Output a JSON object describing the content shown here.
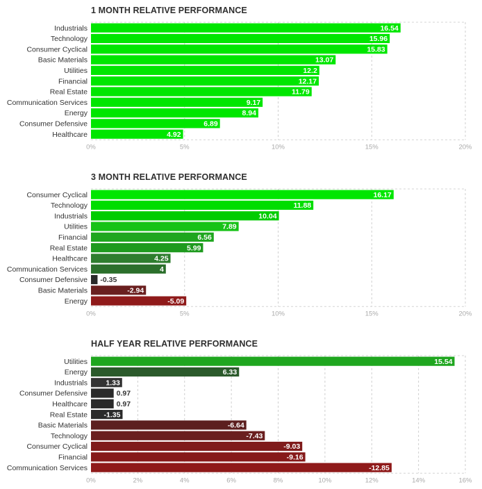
{
  "chart_data": [
    {
      "type": "bar",
      "orientation": "horizontal",
      "title": "1 MONTH RELATIVE PERFORMANCE",
      "categories": [
        "Industrials",
        "Technology",
        "Consumer Cyclical",
        "Basic Materials",
        "Utilities",
        "Financial",
        "Real Estate",
        "Communication Services",
        "Energy",
        "Consumer Defensive",
        "Healthcare"
      ],
      "values": [
        16.54,
        15.96,
        15.83,
        13.07,
        12.2,
        12.17,
        11.79,
        9.17,
        8.94,
        6.89,
        4.92
      ],
      "value_labels": [
        "16.54",
        "15.96",
        "15.83",
        "13.07",
        "12.2",
        "12.17",
        "11.79",
        "9.17",
        "8.94",
        "6.89",
        "4.92"
      ],
      "xlim": [
        0,
        20
      ],
      "ticks": [
        0,
        5,
        10,
        15,
        20
      ],
      "tick_labels": [
        "0%",
        "5%",
        "10%",
        "15%",
        "20%"
      ],
      "colors": [
        "#00e600",
        "#00e600",
        "#00e600",
        "#00e600",
        "#00e600",
        "#00e600",
        "#00e600",
        "#00e600",
        "#00e600",
        "#00e600",
        "#00e600"
      ]
    },
    {
      "type": "bar",
      "orientation": "horizontal",
      "title": "3 MONTH RELATIVE PERFORMANCE",
      "categories": [
        "Consumer Cyclical",
        "Technology",
        "Industrials",
        "Utilities",
        "Financial",
        "Real Estate",
        "Healthcare",
        "Communication Services",
        "Consumer Defensive",
        "Basic Materials",
        "Energy"
      ],
      "values": [
        16.17,
        11.88,
        10.04,
        7.89,
        6.56,
        5.99,
        4.25,
        4.0,
        -0.35,
        -2.94,
        -5.09
      ],
      "value_labels": [
        "16.17",
        "11.88",
        "10.04",
        "7.89",
        "6.56",
        "5.99",
        "4.25",
        "4",
        "-0.35",
        "-2.94",
        "-5.09"
      ],
      "xlim": [
        0,
        20
      ],
      "ticks": [
        0,
        5,
        10,
        15,
        20
      ],
      "tick_labels": [
        "0%",
        "5%",
        "10%",
        "15%",
        "20%"
      ],
      "colors": [
        "#00e600",
        "#00dd00",
        "#00cc00",
        "#17c217",
        "#1fa61f",
        "#1e9a1e",
        "#2e7d2e",
        "#2b6f2b",
        "#2a2a2a",
        "#6a1f1f",
        "#8f1a1a"
      ]
    },
    {
      "type": "bar",
      "orientation": "horizontal",
      "title": "HALF YEAR RELATIVE PERFORMANCE",
      "categories": [
        "Utilities",
        "Energy",
        "Industrials",
        "Consumer Defensive",
        "Healthcare",
        "Real Estate",
        "Basic Materials",
        "Technology",
        "Consumer Cyclical",
        "Financial",
        "Communication Services"
      ],
      "values": [
        15.54,
        6.33,
        1.33,
        0.97,
        0.97,
        -1.35,
        -6.64,
        -7.43,
        -9.03,
        -9.16,
        -12.85
      ],
      "value_labels": [
        "15.54",
        "6.33",
        "1.33",
        "0.97",
        "0.97",
        "-1.35",
        "-6.64",
        "-7.43",
        "-9.03",
        "-9.16",
        "-12.85"
      ],
      "xlim": [
        0,
        16
      ],
      "ticks": [
        0,
        2,
        4,
        6,
        8,
        10,
        12,
        14,
        16
      ],
      "tick_labels": [
        "0%",
        "2%",
        "4%",
        "6%",
        "8%",
        "10%",
        "12%",
        "14%",
        "16%"
      ],
      "colors": [
        "#1fa61f",
        "#2b5a2b",
        "#333333",
        "#2a2a2a",
        "#2a2a2a",
        "#2a2a2a",
        "#5c1f1f",
        "#6a1f1f",
        "#7f1b1b",
        "#861a1a",
        "#8f1a1a"
      ]
    }
  ]
}
